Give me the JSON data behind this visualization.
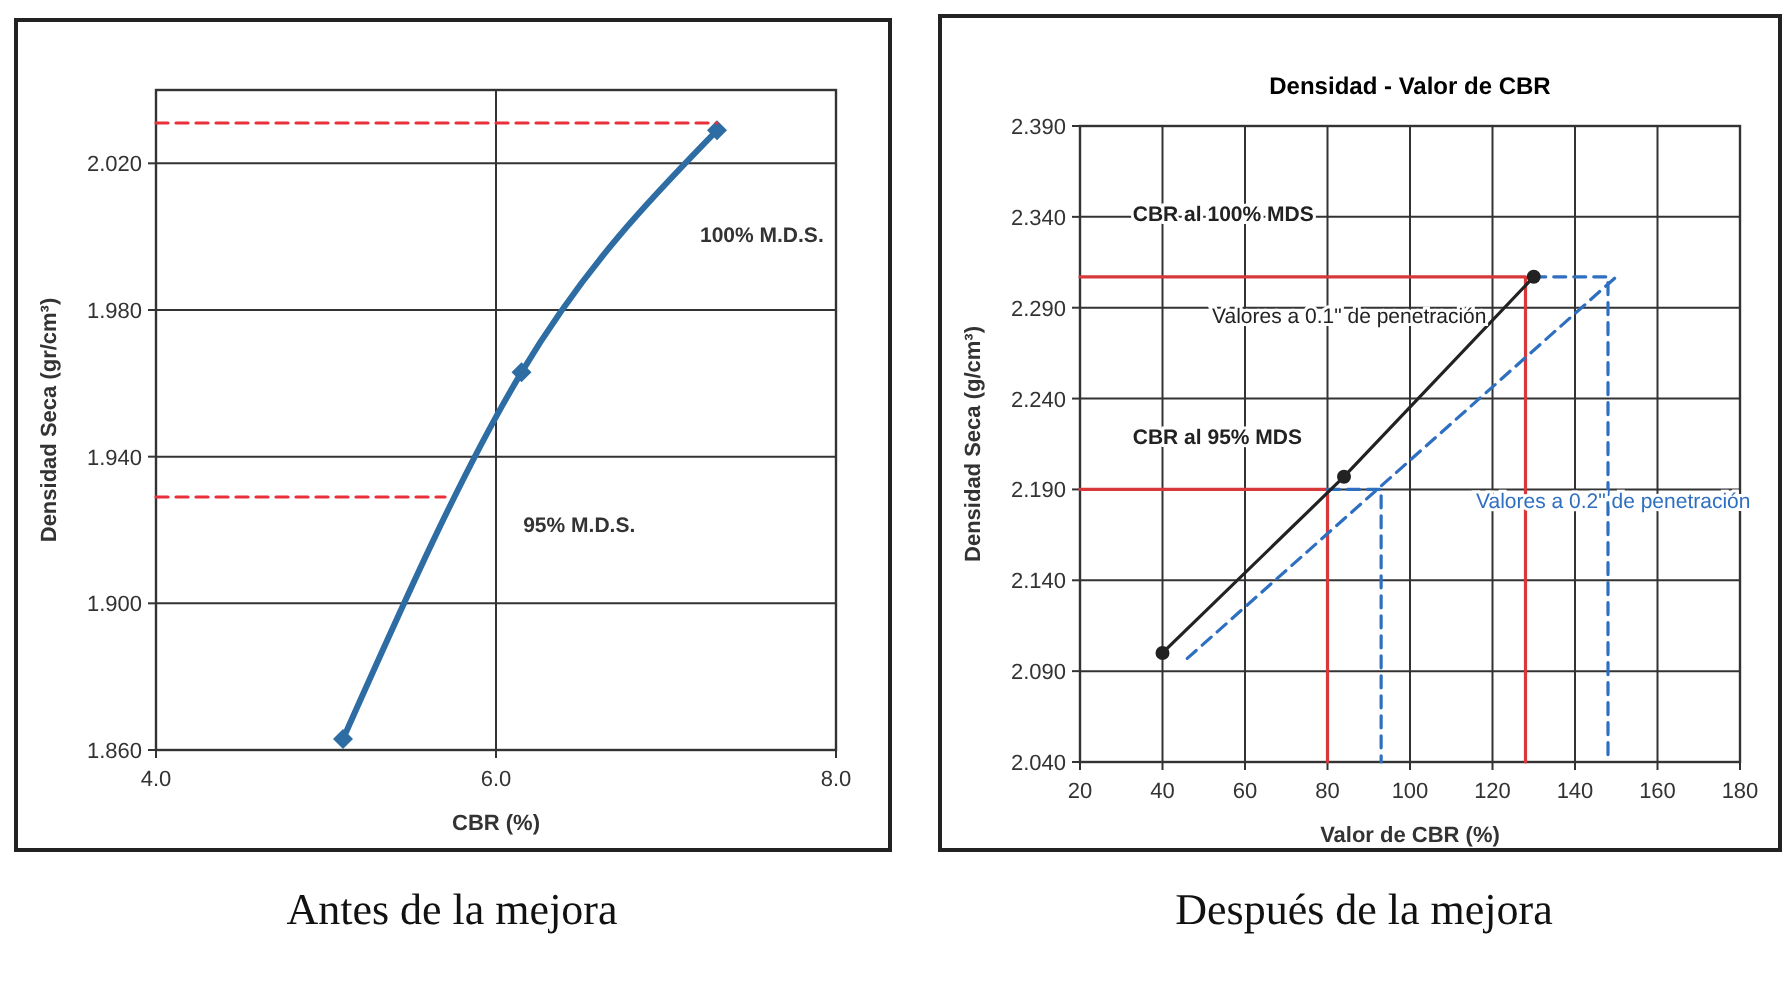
{
  "chart_data": [
    {
      "type": "line",
      "xlabel": "CBR  (%)",
      "ylabel": "Densidad Seca (gr/cm³)",
      "xlim": [
        4,
        8
      ],
      "ylim": [
        1.86,
        2.04
      ],
      "xticks": [
        {
          "value": 4,
          "label": "4.0"
        },
        {
          "value": 6,
          "label": "6.0"
        },
        {
          "value": 8,
          "label": "8.0"
        }
      ],
      "yticks": [
        {
          "value": 1.86,
          "label": "1.860"
        },
        {
          "value": 1.9,
          "label": "1.900"
        },
        {
          "value": 1.94,
          "label": "1.940"
        },
        {
          "value": 1.98,
          "label": "1.980"
        },
        {
          "value": 2.02,
          "label": "2.020"
        }
      ],
      "grid": true,
      "series": [
        {
          "color": "#2e6da4",
          "x": [
            5.1,
            6.15,
            7.3
          ],
          "values": [
            1.863,
            1.963,
            2.029
          ],
          "marker": "diamond",
          "line_style": "solid"
        },
        {
          "color": "#e8303a",
          "x": [
            4,
            7.3
          ],
          "values": [
            2.031,
            2.031
          ],
          "marker": "none",
          "line_style": "dashed"
        },
        {
          "color": "#e8303a",
          "x": [
            4,
            5.7
          ],
          "values": [
            1.929,
            1.929
          ],
          "marker": "none",
          "line_style": "dashed"
        }
      ],
      "annotations": [
        "100% M.D.S.",
        "95% M.D.S.",
        "Antes de la mejora"
      ]
    },
    {
      "type": "line",
      "title": "Densidad - Valor de CBR",
      "xlabel": "Valor de CBR (%)",
      "ylabel": "Densidad Seca (g/cm³)",
      "xlim": [
        20,
        180
      ],
      "ylim": [
        2.04,
        2.39
      ],
      "xticks": [
        20,
        40,
        60,
        80,
        100,
        120,
        140,
        160,
        180
      ],
      "yticks": [
        {
          "value": 2.04,
          "label": "2.040"
        },
        {
          "value": 2.09,
          "label": "2.090"
        },
        {
          "value": 2.14,
          "label": "2.140"
        },
        {
          "value": 2.19,
          "label": "2.190"
        },
        {
          "value": 2.24,
          "label": "2.240"
        },
        {
          "value": 2.29,
          "label": "2.290"
        },
        {
          "value": 2.34,
          "label": "2.340"
        },
        {
          "value": 2.39,
          "label": "2.390"
        }
      ],
      "grid": true,
      "series": [
        {
          "color": "#d9383a",
          "x": [
            20,
            128,
            128
          ],
          "values": [
            2.307,
            2.307,
            2.04
          ],
          "marker": "none",
          "line_style": "solid"
        },
        {
          "color": "#d9383a",
          "x": [
            20,
            80,
            80
          ],
          "values": [
            2.19,
            2.19,
            2.04
          ],
          "marker": "none",
          "line_style": "solid"
        },
        {
          "color": "#2f6fc0",
          "x": [
            130,
            148,
            148
          ],
          "values": [
            2.307,
            2.307,
            2.04
          ],
          "marker": "none",
          "line_style": "dashed"
        },
        {
          "color": "#2f6fc0",
          "x": [
            80,
            93,
            93
          ],
          "values": [
            2.19,
            2.19,
            2.04
          ],
          "marker": "none",
          "line_style": "dashed"
        },
        {
          "color": "#2f6fc0",
          "x": [
            46,
            150
          ],
          "values": [
            2.097,
            2.307
          ],
          "marker": "none",
          "line_style": "dashed"
        },
        {
          "color": "#222222",
          "x": [
            40,
            84,
            130
          ],
          "values": [
            2.1,
            2.197,
            2.307
          ],
          "marker": "circle",
          "line_style": "solid"
        }
      ],
      "annotations": [
        "CBR al 100% MDS",
        "Valores a 0.1\" de penetración",
        "CBR al 95% MDS",
        "Valores a 0.2\" de penetración",
        "Después de la mejora"
      ]
    }
  ]
}
